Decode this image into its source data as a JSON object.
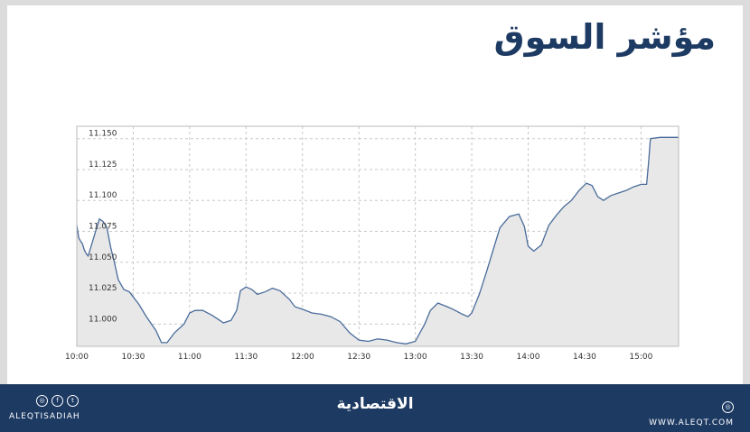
{
  "title": "مؤشر السوق",
  "chart_data": {
    "type": "area",
    "xlabel": "",
    "ylabel": "",
    "x_ticks": [
      "10:00",
      "10:30",
      "11:00",
      "11:30",
      "12:00",
      "12:30",
      "13:00",
      "13:30",
      "14:00",
      "14:30",
      "15:00"
    ],
    "y_ticks": [
      "11.150",
      "11.125",
      "11.100",
      "11.075",
      "11.050",
      "11.025",
      "11.000"
    ],
    "ylim": [
      10982,
      11160
    ],
    "xlim": [
      "10:00",
      "15:20"
    ],
    "grid": true,
    "series": [
      {
        "x": [
          "10:00",
          "10:01",
          "10:02",
          "10:03",
          "10:04",
          "10:05",
          "10:06",
          "10:08",
          "10:10",
          "10:12",
          "10:14",
          "10:16",
          "10:18",
          "10:20",
          "10:22",
          "10:25",
          "10:28",
          "10:30",
          "10:33",
          "10:37",
          "10:42",
          "10:45",
          "10:48",
          "10:52",
          "10:57",
          "11:00",
          "11:03",
          "11:07",
          "11:12",
          "11:15",
          "11:18",
          "11:22",
          "11:25",
          "11:27",
          "11:30",
          "11:33",
          "11:36",
          "11:40",
          "11:44",
          "11:48",
          "11:53",
          "11:56",
          "12:00",
          "12:05",
          "12:10",
          "12:15",
          "12:20",
          "12:25",
          "12:30",
          "12:35",
          "12:40",
          "12:45",
          "12:50",
          "12:55",
          "13:00",
          "13:05",
          "13:08",
          "13:12",
          "13:17",
          "13:20",
          "13:25",
          "13:28",
          "13:30",
          "13:34",
          "13:38",
          "13:42",
          "13:45",
          "13:50",
          "13:55",
          "13:58",
          "14:00",
          "14:03",
          "14:07",
          "14:11",
          "14:15",
          "14:19",
          "14:23",
          "14:27",
          "14:31",
          "14:34",
          "14:37",
          "14:40",
          "14:44",
          "14:48",
          "14:52",
          "14:56",
          "15:00",
          "15:02",
          "15:03",
          "15:04",
          "15:05",
          "15:10",
          "15:15",
          "15:20"
        ],
        "values": [
          11080,
          11070,
          11067,
          11065,
          11060,
          11057,
          11055,
          11065,
          11075,
          11085,
          11083,
          11078,
          11062,
          11050,
          11036,
          11028,
          11026,
          11022,
          11016,
          11006,
          10995,
          10985,
          10985,
          10993,
          11000,
          11009,
          11011,
          11011,
          11007,
          11004,
          11001,
          11003,
          11011,
          11027,
          11030,
          11028,
          11024,
          11026,
          11029,
          11027,
          11020,
          11014,
          11012,
          11009,
          11008,
          11006,
          11002,
          10993,
          10987,
          10986,
          10988,
          10987,
          10985,
          10984,
          10986,
          11000,
          11011,
          11017,
          11014,
          11012,
          11008,
          11006,
          11009,
          11024,
          11043,
          11063,
          11078,
          11087,
          11089,
          11079,
          11063,
          11059,
          11064,
          11080,
          11088,
          11095,
          11100,
          11108,
          11114,
          11112,
          11103,
          11100,
          11104,
          11106,
          11108,
          11111,
          11113,
          11113,
          11113,
          11130,
          11150,
          11151,
          11151,
          11151
        ]
      }
    ]
  },
  "footer": {
    "social_icons": [
      "instagram-icon",
      "facebook-icon",
      "twitter-icon"
    ],
    "social_handle": "ALEQTISADIAH",
    "logo_text": "الاقتصادية",
    "website_icon": "web-icon",
    "website": "WWW.ALEQT.COM"
  },
  "colors": {
    "title": "#1d3a63",
    "footer_bg": "#1d3a63",
    "line": "#4a6c9b",
    "fill": "#e8e8e8",
    "grid": "#c8c8c8"
  }
}
